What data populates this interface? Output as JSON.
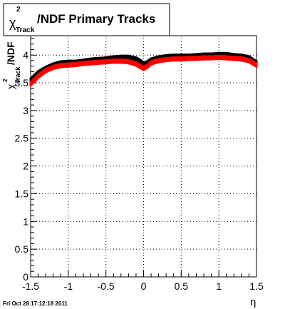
{
  "chart_data": {
    "type": "scatter",
    "title": {
      "symbol": "χ",
      "sup": "2",
      "sub": "Track",
      "rest": "/NDF  Primary Tracks"
    },
    "ylabel": {
      "symbol": "χ",
      "sup": "2",
      "sub": "Track",
      "rest": "/NDF"
    },
    "xlabel": "η",
    "xlim": [
      -1.5,
      1.5
    ],
    "ylim": [
      0,
      4.35
    ],
    "x_ticks": [
      {
        "value": -1.5,
        "label": "-1.5"
      },
      {
        "value": -1,
        "label": "-1"
      },
      {
        "value": -0.5,
        "label": "-0.5"
      },
      {
        "value": 0,
        "label": "0"
      },
      {
        "value": 0.5,
        "label": "0.5"
      },
      {
        "value": 1,
        "label": "1"
      },
      {
        "value": 1.5,
        "label": "1.5"
      }
    ],
    "y_ticks": [
      {
        "value": 0,
        "label": "0"
      },
      {
        "value": 0.5,
        "label": "0.5"
      },
      {
        "value": 1,
        "label": "1"
      },
      {
        "value": 1.5,
        "label": "1.5"
      },
      {
        "value": 2,
        "label": "2"
      },
      {
        "value": 2.5,
        "label": "2.5"
      },
      {
        "value": 3,
        "label": "3"
      },
      {
        "value": 3.5,
        "label": "3.5"
      },
      {
        "value": 4,
        "label": "4"
      }
    ],
    "grid": true,
    "series": [
      {
        "color": "#000000",
        "x": [
          -1.5,
          -1.4,
          -1.3,
          -1.2,
          -1.1,
          -1.0,
          -0.9,
          -0.8,
          -0.7,
          -0.6,
          -0.5,
          -0.4,
          -0.3,
          -0.2,
          -0.1,
          -0.05,
          0.0,
          0.05,
          0.1,
          0.2,
          0.3,
          0.4,
          0.5,
          0.6,
          0.7,
          0.8,
          0.9,
          1.0,
          1.1,
          1.2,
          1.3,
          1.4,
          1.5
        ],
        "y": [
          3.55,
          3.68,
          3.76,
          3.82,
          3.86,
          3.87,
          3.87,
          3.89,
          3.91,
          3.92,
          3.93,
          3.95,
          3.96,
          3.96,
          3.93,
          3.89,
          3.84,
          3.86,
          3.91,
          3.95,
          3.97,
          3.98,
          3.98,
          3.98,
          3.99,
          4.0,
          4.0,
          4.01,
          4.01,
          3.99,
          3.98,
          3.95,
          3.86
        ]
      },
      {
        "color": "#ff0000",
        "x": [
          -1.5,
          -1.4,
          -1.3,
          -1.2,
          -1.1,
          -1.0,
          -0.9,
          -0.8,
          -0.7,
          -0.6,
          -0.5,
          -0.4,
          -0.3,
          -0.2,
          -0.1,
          -0.05,
          0.0,
          0.05,
          0.1,
          0.2,
          0.3,
          0.4,
          0.5,
          0.6,
          0.7,
          0.8,
          0.9,
          1.0,
          1.1,
          1.2,
          1.3,
          1.4,
          1.5
        ],
        "y": [
          3.48,
          3.62,
          3.72,
          3.78,
          3.81,
          3.82,
          3.83,
          3.85,
          3.86,
          3.87,
          3.88,
          3.89,
          3.89,
          3.88,
          3.84,
          3.8,
          3.76,
          3.8,
          3.86,
          3.9,
          3.92,
          3.93,
          3.93,
          3.94,
          3.94,
          3.95,
          3.95,
          3.96,
          3.95,
          3.94,
          3.93,
          3.9,
          3.82
        ]
      }
    ],
    "timestamp": "Fri Oct 28 17:12:18 2011"
  }
}
